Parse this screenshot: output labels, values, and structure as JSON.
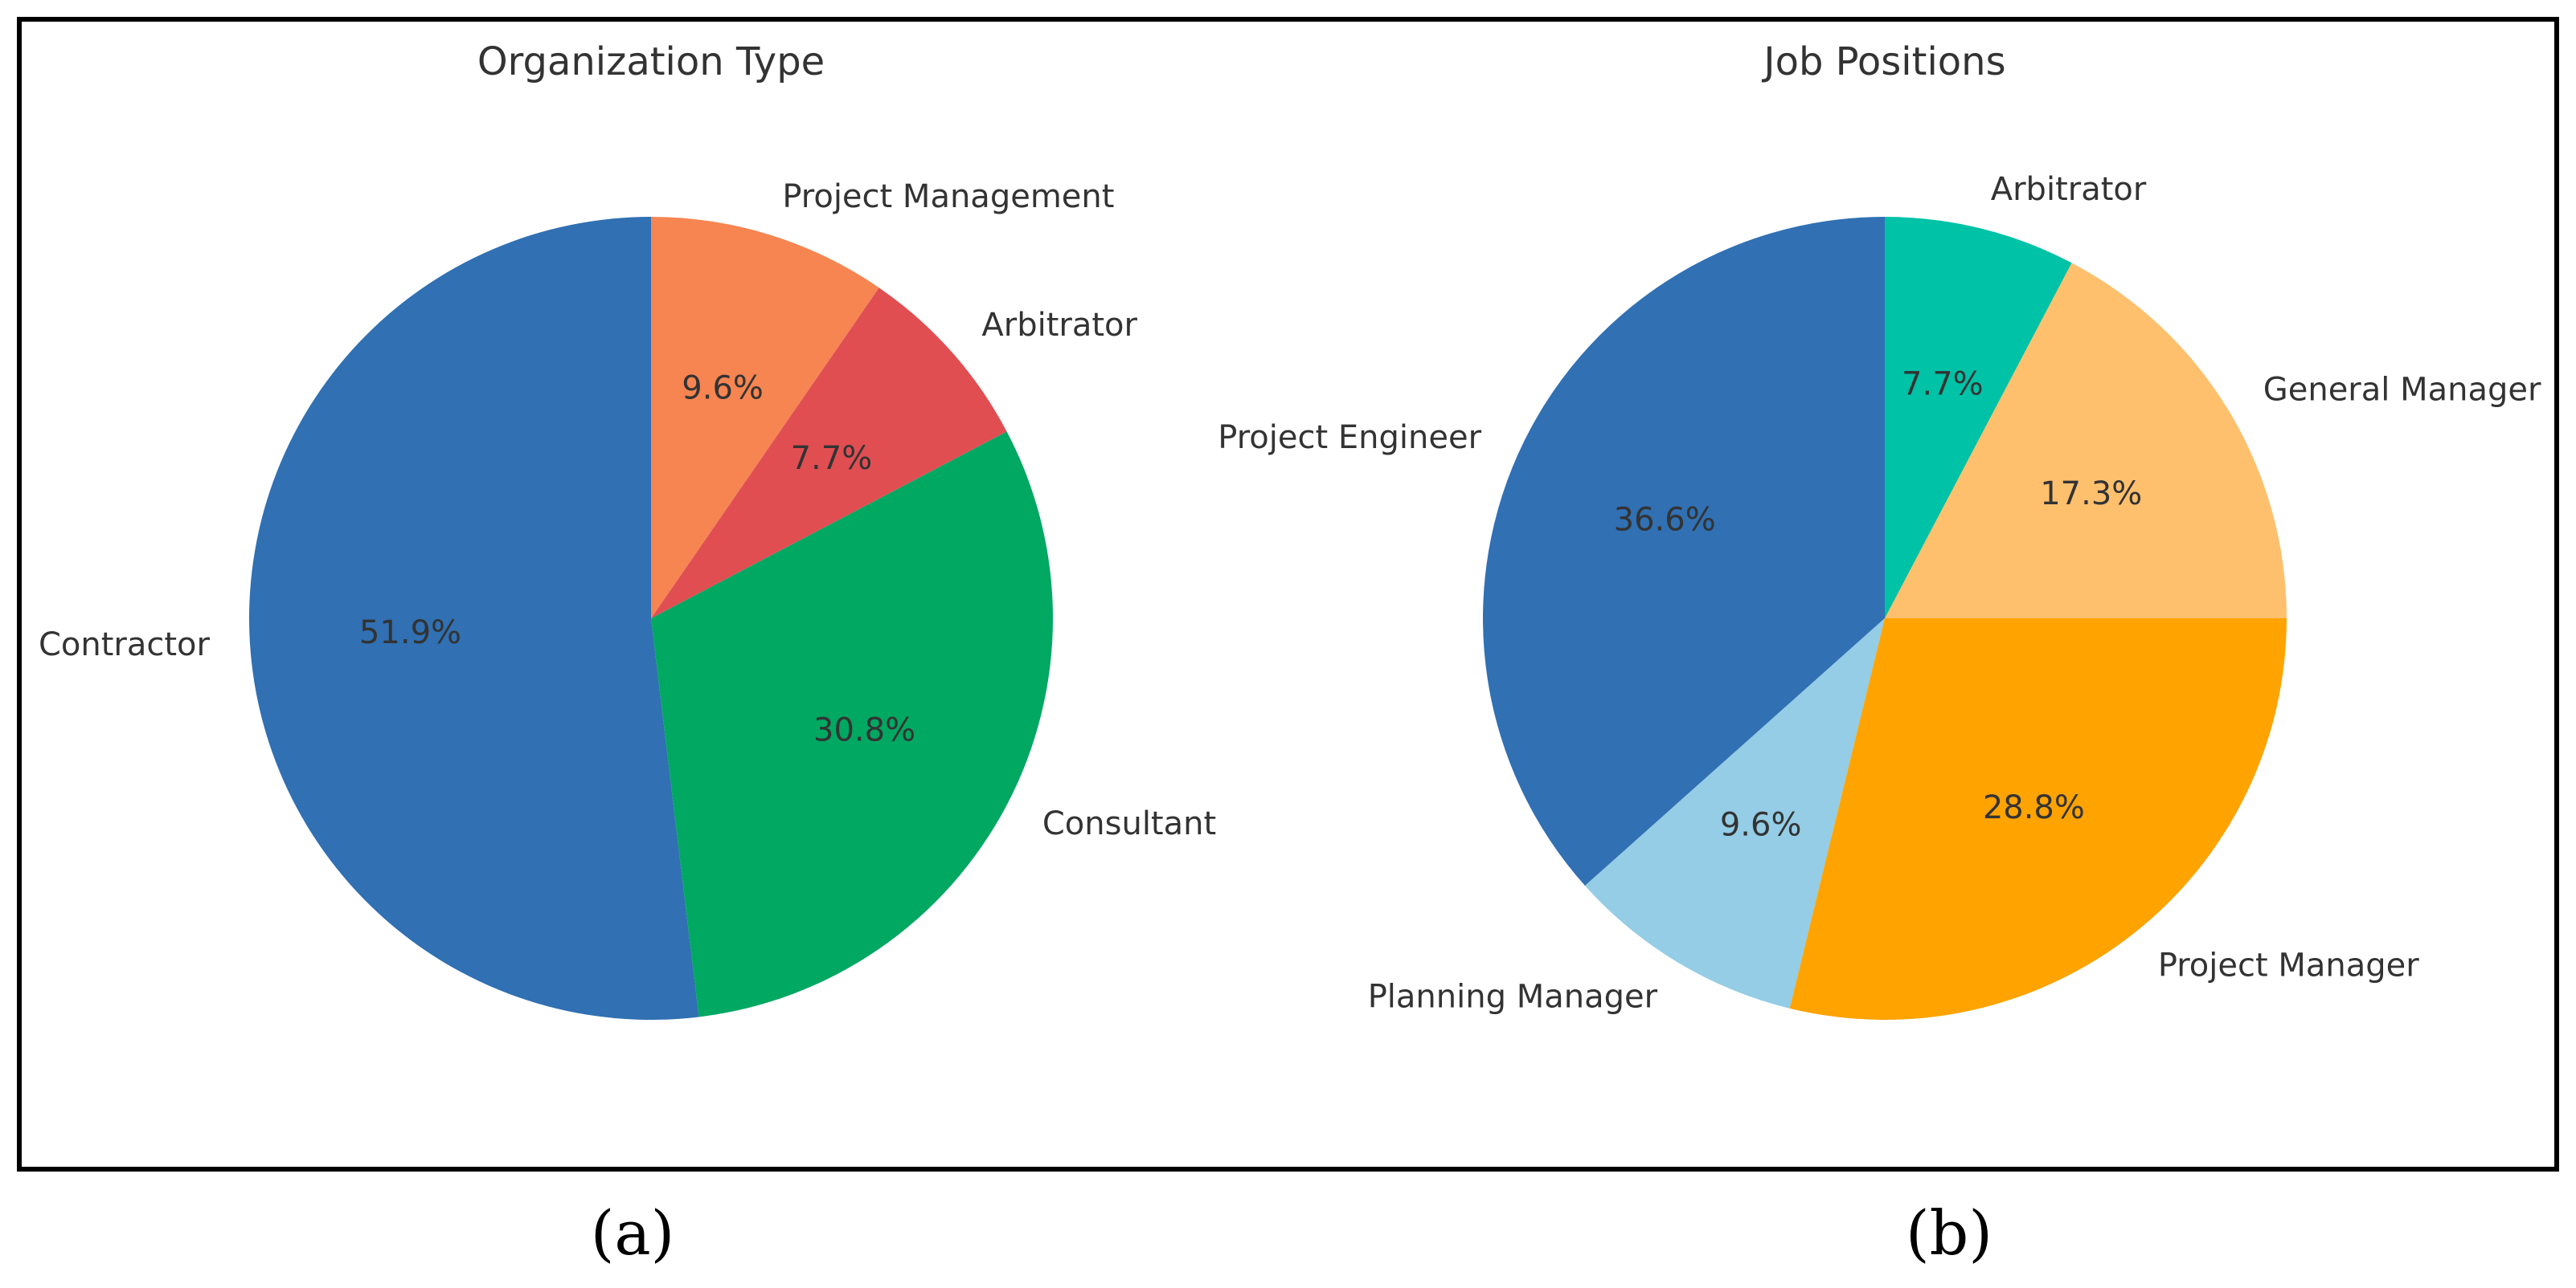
{
  "chart_data": [
    {
      "type": "pie",
      "title": "Organization Type",
      "panel_label": "(a)",
      "start_angle_deg": 90,
      "direction": "counterclockwise",
      "slices": [
        {
          "label": "Contractor",
          "value": 51.9,
          "pct_label": "51.9%",
          "color": "#3070B3"
        },
        {
          "label": "Consultant",
          "value": 30.8,
          "pct_label": "30.8%",
          "color": "#00A862"
        },
        {
          "label": "Arbitrator",
          "value": 7.7,
          "pct_label": "7.7%",
          "color": "#E04E52"
        },
        {
          "label": "Project Management",
          "value": 9.6,
          "pct_label": "9.6%",
          "color": "#F78551"
        }
      ]
    },
    {
      "type": "pie",
      "title": "Job Positions",
      "panel_label": "(b)",
      "start_angle_deg": 90,
      "direction": "counterclockwise",
      "slices": [
        {
          "label": "Project Engineer",
          "value": 36.6,
          "pct_label": "36.6%",
          "color": "#3070B3"
        },
        {
          "label": "Planning Manager",
          "value": 9.6,
          "pct_label": "9.6%",
          "color": "#94CDE5"
        },
        {
          "label": "Project Manager",
          "value": 28.8,
          "pct_label": "28.8%",
          "color": "#FFA300"
        },
        {
          "label": "General Manager",
          "value": 17.3,
          "pct_label": "17.3%",
          "color": "#FFC06E"
        },
        {
          "label": "Arbitrator",
          "value": 7.7,
          "pct_label": "7.7%",
          "color": "#00C2A7"
        }
      ]
    }
  ]
}
